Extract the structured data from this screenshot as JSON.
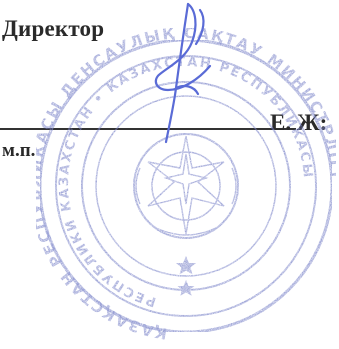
{
  "document": {
    "position_label": "Директор",
    "name_partial": "Е. Ж:",
    "seal_place_label": "м.п."
  },
  "colors": {
    "text": "#2a2a2a",
    "seal": "#7b84c9",
    "signature": "#5a6bd6"
  },
  "stamp": {
    "text_fragments": [
      "РЕСПУБЛИКАСЫ",
      "ҚАЗАҚСТАН",
      "МИНИСТРЛІГІ",
      "ДЕНСАУЛЫҚ САҚТАУ",
      "КАЗАХСТАН",
      "РЕСПУБЛИКИ"
    ]
  }
}
